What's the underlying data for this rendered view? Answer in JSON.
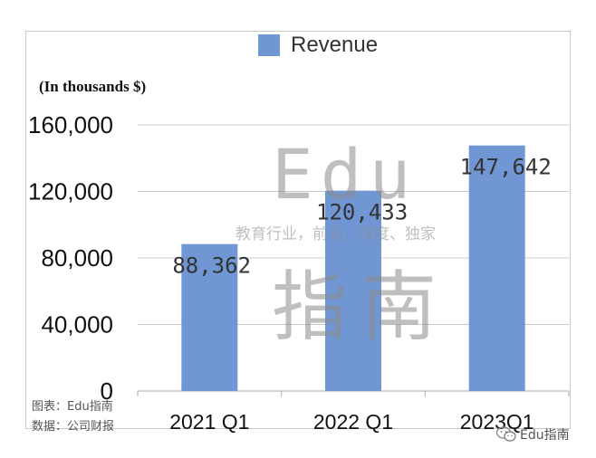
{
  "chart_data": {
    "type": "bar",
    "categories": [
      "2021 Q1",
      "2022 Q1",
      "2023Q1"
    ],
    "series": [
      {
        "name": "Revenue",
        "values": [
          88362,
          120433,
          147642
        ],
        "labels": [
          "88,362",
          "120,433",
          "147,642"
        ]
      }
    ],
    "y_note": "(In thousands $)",
    "ylim": [
      0,
      160000
    ],
    "yticks": [
      0,
      40000,
      80000,
      120000,
      160000
    ],
    "ytick_labels": [
      "0",
      "40,000",
      "80,000",
      "120,000",
      "160,000"
    ],
    "grid": true,
    "legend_position": "top-center",
    "bar_color": "#7096d4"
  },
  "watermark": {
    "edu": "Edu",
    "tagline": "教育行业，前沿、深度、独家",
    "name": "指南"
  },
  "footnotes": {
    "chart_source": "图表：Edu指南",
    "data_source": "数据：公司财报"
  },
  "brand": {
    "label": "Edu指南",
    "icon": "wechat-icon"
  }
}
